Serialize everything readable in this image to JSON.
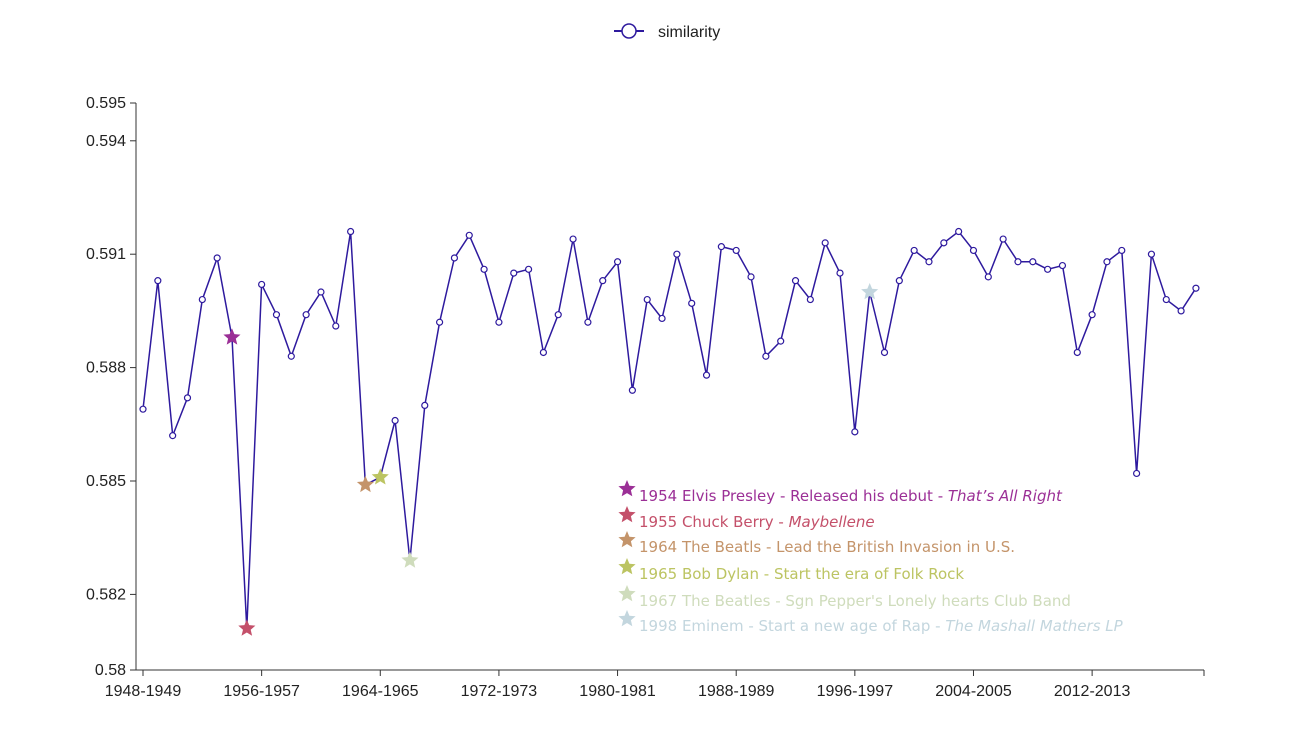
{
  "chart_data": {
    "type": "line",
    "legend": {
      "label": "similarity",
      "placement": "top-center"
    },
    "series": [
      {
        "name": "similarity",
        "color": "#2e1a9e",
        "start_year": 1948,
        "values": [
          0.5869,
          0.5903,
          0.5862,
          0.5872,
          0.5898,
          0.5909,
          0.5888,
          0.5811,
          0.5902,
          0.5894,
          0.5883,
          0.5894,
          0.59,
          0.5891,
          0.5916,
          0.5849,
          0.5851,
          0.5866,
          0.5829,
          0.587,
          0.5892,
          0.5909,
          0.5915,
          0.5906,
          0.5892,
          0.5905,
          0.5906,
          0.5884,
          0.5894,
          0.5914,
          0.5892,
          0.5903,
          0.5908,
          0.5874,
          0.5898,
          0.5893,
          0.591,
          0.5897,
          0.5878,
          0.5912,
          0.5911,
          0.5904,
          0.5883,
          0.5887,
          0.5903,
          0.5898,
          0.5913,
          0.5905,
          0.5863,
          0.59,
          0.5884,
          0.5903,
          0.5911,
          0.5908,
          0.5913,
          0.5916,
          0.5911,
          0.5904,
          0.5914,
          0.5908,
          0.5908,
          0.5906,
          0.5907,
          0.5884,
          0.5894,
          0.5908,
          0.5911,
          0.5852,
          0.591,
          0.5898,
          0.5895,
          0.5901
        ]
      }
    ],
    "x_tick_labels": [
      "1948-1949",
      "1956-1957",
      "1964-1965",
      "1972-1973",
      "1980-1981",
      "1988-1989",
      "1996-1997",
      "2004-2005",
      "2012-2013"
    ],
    "x_tick_every": 8,
    "y_ticks": [
      "0.58",
      "0.582",
      "0.585",
      "0.588",
      "0.591",
      "0.594",
      "0.595"
    ],
    "ylim": [
      0.58,
      0.595
    ],
    "grid": false,
    "annotations": [
      {
        "index": 6,
        "color": "#9b2f96",
        "year": "1954",
        "artist": "Elvis Presley",
        "sep": " - ",
        "desc": "Released his debut - ",
        "title": "That’s All Right"
      },
      {
        "index": 7,
        "color": "#c4506a",
        "year": "1955",
        "artist": "Chuck Berry",
        "sep": " - ",
        "desc": "",
        "title": "Maybellene"
      },
      {
        "index": 15,
        "color": "#c4946a",
        "year": "1964",
        "artist": "The Beatls",
        "sep": " - ",
        "desc": "Lead the British Invasion in U.S.",
        "title": ""
      },
      {
        "index": 16,
        "color": "#bcc462",
        "year": "1965",
        "artist": "Bob Dylan",
        "sep": " - ",
        "desc": "Start the era of Folk Rock",
        "title": ""
      },
      {
        "index": 18,
        "color": "#cfdcbc",
        "year": "1967",
        "artist": "The Beatles",
        "sep": " - ",
        "desc": "Sgn Pepper's Lonely hearts Club Band",
        "title": ""
      },
      {
        "index": 49,
        "color": "#c3d6de",
        "year": "1998",
        "artist": "Eminem",
        "sep": " - ",
        "desc": "Start a new age of Rap - ",
        "title": "The Mashall Mathers LP"
      }
    ]
  }
}
